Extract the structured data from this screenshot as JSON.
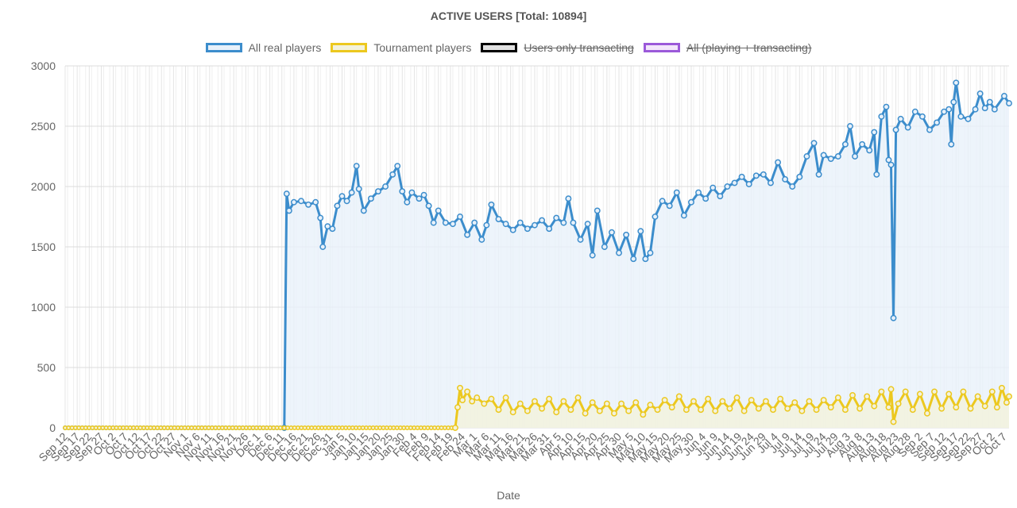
{
  "chart_data": {
    "type": "line",
    "title": "ACTIVE USERS [Total: 10894]",
    "xlabel": "Date",
    "ylabel": "",
    "ylim": [
      0,
      3000
    ],
    "yticks": [
      "3000",
      "2500",
      "2000",
      "1500",
      "1000",
      "500",
      "0"
    ],
    "grid": true,
    "legend_position": "top",
    "x_start": "Sep 12",
    "x_end": "Oct 9",
    "x_tick_labels": [
      "Sep 12",
      "Sep 17",
      "Sep 22",
      "Sep 27",
      "Oct 2",
      "Oct 7",
      "Oct 12",
      "Oct 17",
      "Oct 22",
      "Oct 27",
      "Nov 1",
      "Nov 6",
      "Nov 11",
      "Nov 16",
      "Nov 21",
      "Nov 26",
      "Dec 1",
      "Dec 6",
      "Dec 11",
      "Dec 16",
      "Dec 21",
      "Dec 26",
      "Dec 31",
      "Jan 5",
      "Jan 10",
      "Jan 15",
      "Jan 20",
      "Jan 25",
      "Jan 30",
      "Feb 4",
      "Feb 9",
      "Feb 14",
      "Feb 19",
      "Feb 24",
      "Mar 1",
      "Mar 6",
      "Mar 11",
      "Mar 16",
      "Mar 21",
      "Mar 26",
      "Mar 31",
      "Apr 5",
      "Apr 10",
      "Apr 15",
      "Apr 20",
      "Apr 25",
      "Apr 30",
      "May 5",
      "May 10",
      "May 15",
      "May 20",
      "May 25",
      "May 30",
      "Jun 4",
      "Jun 9",
      "Jun 14",
      "Jun 19",
      "Jun 24",
      "Jun 29",
      "Jul 4",
      "Jul 9",
      "Jul 14",
      "Jul 19",
      "Jul 24",
      "Jul 29",
      "Aug 3",
      "Aug 8",
      "Aug 13",
      "Aug 18",
      "Aug 23",
      "Aug 28",
      "Sep 2",
      "Sep 7",
      "Sep 12",
      "Sep 17",
      "Sep 22",
      "Sep 27",
      "Oct 2",
      "Oct 7"
    ],
    "series": [
      {
        "name": "All real players",
        "color": "#3c8dcc",
        "fill": "#e8f1fa",
        "hidden": false,
        "points": [
          [
            "Sep 12",
            0
          ],
          [
            "Dec 12",
            0
          ],
          [
            "Dec 13",
            1940
          ],
          [
            "Dec 14",
            1800
          ],
          [
            "Dec 16",
            1870
          ],
          [
            "Dec 19",
            1880
          ],
          [
            "Dec 22",
            1850
          ],
          [
            "Dec 25",
            1870
          ],
          [
            "Dec 27",
            1740
          ],
          [
            "Dec 28",
            1500
          ],
          [
            "Dec 30",
            1670
          ],
          [
            "Jan 1",
            1650
          ],
          [
            "Jan 3",
            1840
          ],
          [
            "Jan 5",
            1920
          ],
          [
            "Jan 7",
            1880
          ],
          [
            "Jan 9",
            1950
          ],
          [
            "Jan 11",
            2170
          ],
          [
            "Jan 12",
            1980
          ],
          [
            "Jan 14",
            1800
          ],
          [
            "Jan 17",
            1900
          ],
          [
            "Jan 20",
            1960
          ],
          [
            "Jan 23",
            2000
          ],
          [
            "Jan 26",
            2100
          ],
          [
            "Jan 28",
            2170
          ],
          [
            "Jan 30",
            1960
          ],
          [
            "Feb 1",
            1870
          ],
          [
            "Feb 3",
            1950
          ],
          [
            "Feb 6",
            1900
          ],
          [
            "Feb 8",
            1930
          ],
          [
            "Feb 10",
            1840
          ],
          [
            "Feb 12",
            1700
          ],
          [
            "Feb 14",
            1800
          ],
          [
            "Feb 17",
            1700
          ],
          [
            "Feb 20",
            1690
          ],
          [
            "Feb 23",
            1750
          ],
          [
            "Feb 26",
            1600
          ],
          [
            "Mar 1",
            1700
          ],
          [
            "Mar 4",
            1560
          ],
          [
            "Mar 6",
            1680
          ],
          [
            "Mar 8",
            1850
          ],
          [
            "Mar 11",
            1730
          ],
          [
            "Mar 14",
            1690
          ],
          [
            "Mar 17",
            1640
          ],
          [
            "Mar 20",
            1700
          ],
          [
            "Mar 23",
            1650
          ],
          [
            "Mar 26",
            1680
          ],
          [
            "Mar 29",
            1720
          ],
          [
            "Apr 1",
            1650
          ],
          [
            "Apr 4",
            1740
          ],
          [
            "Apr 7",
            1700
          ],
          [
            "Apr 9",
            1900
          ],
          [
            "Apr 11",
            1700
          ],
          [
            "Apr 14",
            1560
          ],
          [
            "Apr 17",
            1690
          ],
          [
            "Apr 19",
            1430
          ],
          [
            "Apr 21",
            1800
          ],
          [
            "Apr 24",
            1500
          ],
          [
            "Apr 27",
            1620
          ],
          [
            "Apr 30",
            1450
          ],
          [
            "May 3",
            1600
          ],
          [
            "May 6",
            1400
          ],
          [
            "May 9",
            1630
          ],
          [
            "May 11",
            1400
          ],
          [
            "May 13",
            1450
          ],
          [
            "May 15",
            1750
          ],
          [
            "May 18",
            1880
          ],
          [
            "May 21",
            1840
          ],
          [
            "May 24",
            1950
          ],
          [
            "May 27",
            1760
          ],
          [
            "May 30",
            1870
          ],
          [
            "Jun 2",
            1950
          ],
          [
            "Jun 5",
            1900
          ],
          [
            "Jun 8",
            1990
          ],
          [
            "Jun 11",
            1920
          ],
          [
            "Jun 14",
            2000
          ],
          [
            "Jun 17",
            2030
          ],
          [
            "Jun 20",
            2080
          ],
          [
            "Jun 23",
            2020
          ],
          [
            "Jun 26",
            2090
          ],
          [
            "Jun 29",
            2100
          ],
          [
            "Jul 2",
            2030
          ],
          [
            "Jul 5",
            2200
          ],
          [
            "Jul 8",
            2060
          ],
          [
            "Jul 11",
            2000
          ],
          [
            "Jul 14",
            2080
          ],
          [
            "Jul 17",
            2250
          ],
          [
            "Jul 20",
            2360
          ],
          [
            "Jul 22",
            2100
          ],
          [
            "Jul 24",
            2260
          ],
          [
            "Jul 27",
            2230
          ],
          [
            "Jul 30",
            2250
          ],
          [
            "Aug 2",
            2350
          ],
          [
            "Aug 4",
            2500
          ],
          [
            "Aug 6",
            2250
          ],
          [
            "Aug 9",
            2350
          ],
          [
            "Aug 12",
            2300
          ],
          [
            "Aug 14",
            2450
          ],
          [
            "Aug 15",
            2100
          ],
          [
            "Aug 17",
            2580
          ],
          [
            "Aug 19",
            2660
          ],
          [
            "Aug 20",
            2220
          ],
          [
            "Aug 21",
            2180
          ],
          [
            "Aug 22",
            910
          ],
          [
            "Aug 23",
            2470
          ],
          [
            "Aug 25",
            2560
          ],
          [
            "Aug 28",
            2490
          ],
          [
            "Aug 31",
            2620
          ],
          [
            "Sep 3",
            2580
          ],
          [
            "Sep 6",
            2470
          ],
          [
            "Sep 9",
            2530
          ],
          [
            "Sep 12",
            2620
          ],
          [
            "Sep 14",
            2640
          ],
          [
            "Sep 15",
            2350
          ],
          [
            "Sep 16",
            2700
          ],
          [
            "Sep 17",
            2860
          ],
          [
            "Sep 19",
            2580
          ],
          [
            "Sep 22",
            2560
          ],
          [
            "Sep 25",
            2640
          ],
          [
            "Sep 27",
            2770
          ],
          [
            "Sep 29",
            2650
          ],
          [
            "Oct 1",
            2700
          ],
          [
            "Oct 3",
            2640
          ],
          [
            "Oct 7",
            2750
          ],
          [
            "Oct 9",
            2690
          ]
        ]
      },
      {
        "name": "Tournament players",
        "color": "#ecc81f",
        "fill": "#f3f2dc",
        "hidden": false,
        "points": [
          [
            "Sep 12",
            0
          ],
          [
            "Dec 12",
            0
          ],
          [
            "Feb 21",
            0
          ],
          [
            "Feb 22",
            170
          ],
          [
            "Feb 23",
            330
          ],
          [
            "Feb 24",
            230
          ],
          [
            "Feb 26",
            300
          ],
          [
            "Feb 28",
            220
          ],
          [
            "Mar 2",
            250
          ],
          [
            "Mar 5",
            200
          ],
          [
            "Mar 8",
            240
          ],
          [
            "Mar 11",
            150
          ],
          [
            "Mar 14",
            250
          ],
          [
            "Mar 17",
            130
          ],
          [
            "Mar 20",
            200
          ],
          [
            "Mar 23",
            140
          ],
          [
            "Mar 26",
            220
          ],
          [
            "Mar 29",
            160
          ],
          [
            "Apr 1",
            240
          ],
          [
            "Apr 4",
            130
          ],
          [
            "Apr 7",
            220
          ],
          [
            "Apr 10",
            150
          ],
          [
            "Apr 13",
            250
          ],
          [
            "Apr 16",
            120
          ],
          [
            "Apr 19",
            210
          ],
          [
            "Apr 22",
            140
          ],
          [
            "Apr 25",
            200
          ],
          [
            "Apr 28",
            120
          ],
          [
            "May 1",
            200
          ],
          [
            "May 4",
            140
          ],
          [
            "May 7",
            210
          ],
          [
            "May 10",
            110
          ],
          [
            "May 13",
            190
          ],
          [
            "May 16",
            150
          ],
          [
            "May 19",
            230
          ],
          [
            "May 22",
            170
          ],
          [
            "May 25",
            260
          ],
          [
            "May 28",
            150
          ],
          [
            "May 31",
            220
          ],
          [
            "Jun 3",
            150
          ],
          [
            "Jun 6",
            240
          ],
          [
            "Jun 9",
            140
          ],
          [
            "Jun 12",
            220
          ],
          [
            "Jun 15",
            160
          ],
          [
            "Jun 18",
            250
          ],
          [
            "Jun 21",
            140
          ],
          [
            "Jun 24",
            230
          ],
          [
            "Jun 27",
            160
          ],
          [
            "Jun 30",
            220
          ],
          [
            "Jul 3",
            150
          ],
          [
            "Jul 6",
            240
          ],
          [
            "Jul 9",
            160
          ],
          [
            "Jul 12",
            210
          ],
          [
            "Jul 15",
            140
          ],
          [
            "Jul 18",
            220
          ],
          [
            "Jul 21",
            150
          ],
          [
            "Jul 24",
            230
          ],
          [
            "Jul 27",
            170
          ],
          [
            "Jul 30",
            250
          ],
          [
            "Aug 2",
            150
          ],
          [
            "Aug 5",
            270
          ],
          [
            "Aug 8",
            160
          ],
          [
            "Aug 11",
            260
          ],
          [
            "Aug 14",
            180
          ],
          [
            "Aug 17",
            300
          ],
          [
            "Aug 20",
            170
          ],
          [
            "Aug 21",
            320
          ],
          [
            "Aug 22",
            50
          ],
          [
            "Aug 24",
            200
          ],
          [
            "Aug 27",
            300
          ],
          [
            "Aug 30",
            150
          ],
          [
            "Sep 2",
            280
          ],
          [
            "Sep 5",
            120
          ],
          [
            "Sep 8",
            300
          ],
          [
            "Sep 11",
            160
          ],
          [
            "Sep 14",
            280
          ],
          [
            "Sep 17",
            170
          ],
          [
            "Sep 20",
            300
          ],
          [
            "Sep 23",
            160
          ],
          [
            "Sep 26",
            260
          ],
          [
            "Sep 29",
            180
          ],
          [
            "Oct 2",
            300
          ],
          [
            "Oct 4",
            170
          ],
          [
            "Oct 6",
            330
          ],
          [
            "Oct 8",
            210
          ],
          [
            "Oct 9",
            260
          ]
        ]
      },
      {
        "name": "Users only transacting",
        "color": "#000000",
        "fill": "#e0e0e0",
        "hidden": true,
        "points": []
      },
      {
        "name": "All (playing + transacting)",
        "color": "#9b59d9",
        "fill": "#f3e6fb",
        "hidden": true,
        "points": []
      }
    ]
  }
}
